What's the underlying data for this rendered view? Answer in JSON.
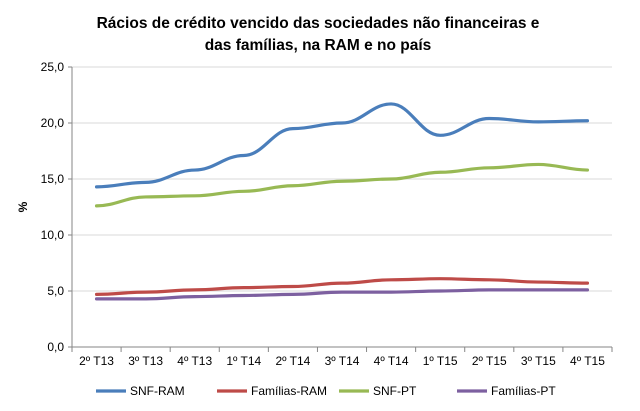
{
  "chart_data": {
    "type": "line",
    "title": "Rácios de crédito vencido  das sociedades  não financeiras  e das famílias, na RAM e no país",
    "title_lines": [
      "Rácios de crédito vencido  das sociedades  não financeiras  e",
      "das famílias, na RAM e no país"
    ],
    "xlabel": "",
    "ylabel": "%",
    "ylim": [
      0,
      25
    ],
    "ytick_step": 5,
    "ytick_labels": [
      "0,0",
      "5,0",
      "10,0",
      "15,0",
      "20,0",
      "25,0"
    ],
    "grid": true,
    "legend_position": "bottom",
    "categories": [
      "2º T13",
      "3º T13",
      "4º T13",
      "1º T14",
      "2º T14",
      "3º T14",
      "4º T14",
      "1º T15",
      "2º T15",
      "3º T15",
      "4º T15"
    ],
    "series": [
      {
        "name": "SNF-RAM",
        "color": "#4a7ebb",
        "values": [
          14.3,
          14.7,
          15.8,
          17.1,
          19.5,
          20.0,
          21.7,
          18.9,
          20.4,
          20.1,
          20.2
        ]
      },
      {
        "name": "Famílias-RAM",
        "color": "#be4b48",
        "values": [
          4.7,
          4.9,
          5.1,
          5.3,
          5.4,
          5.7,
          6.0,
          6.1,
          6.0,
          5.8,
          5.7
        ]
      },
      {
        "name": "SNF-PT",
        "color": "#98b954",
        "values": [
          12.6,
          13.4,
          13.5,
          13.9,
          14.4,
          14.8,
          15.0,
          15.6,
          16.0,
          16.3,
          15.8
        ]
      },
      {
        "name": "Famílias-PT",
        "color": "#7d60a0",
        "values": [
          4.3,
          4.3,
          4.5,
          4.6,
          4.7,
          4.9,
          4.9,
          5.0,
          5.1,
          5.1,
          5.1
        ]
      }
    ]
  }
}
